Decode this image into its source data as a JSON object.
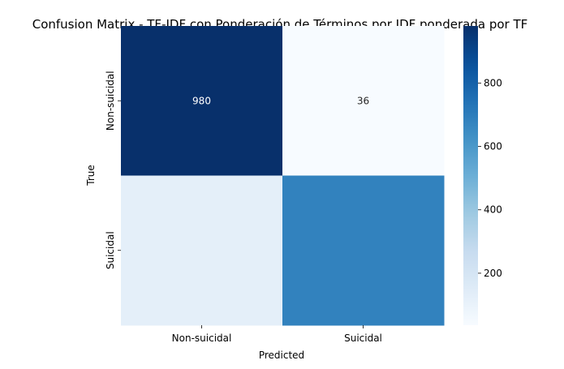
{
  "chart_data": {
    "type": "heatmap",
    "title": "Confusion Matrix - TF-IDF con Ponderación de Términos por IDF ponderada por TF",
    "xlabel": "Predicted",
    "ylabel": "True",
    "x_categories": [
      "Non-suicidal",
      "Suicidal"
    ],
    "y_categories": [
      "Non-suicidal",
      "Suicidal"
    ],
    "values": [
      [
        980,
        36
      ],
      [
        128,
        682
      ]
    ],
    "annotations": [
      [
        "980",
        "36"
      ],
      [
        "",
        ""
      ]
    ],
    "colormap": "Blues",
    "colorbar": {
      "min": 36,
      "max": 980,
      "ticks": [
        200,
        400,
        600,
        800
      ]
    },
    "colors": {
      "low": "#f7fbff",
      "high": "#08306b"
    }
  }
}
